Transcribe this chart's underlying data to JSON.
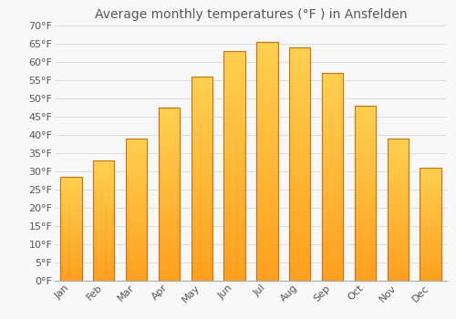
{
  "title": "Average monthly temperatures (°F ) in Ansfelden",
  "months": [
    "Jan",
    "Feb",
    "Mar",
    "Apr",
    "May",
    "Jun",
    "Jul",
    "Aug",
    "Sep",
    "Oct",
    "Nov",
    "Dec"
  ],
  "values": [
    28.5,
    33.0,
    39.0,
    47.5,
    56.0,
    63.0,
    65.5,
    64.0,
    57.0,
    48.0,
    39.0,
    31.0
  ],
  "bar_color_bottom": "#FFA020",
  "bar_color_top": "#FFD050",
  "bar_color_edge": "#C87010",
  "background_color": "#F8F8F8",
  "grid_color": "#DDDDDD",
  "text_color": "#555555",
  "ylim": [
    0,
    70
  ],
  "yticks": [
    0,
    5,
    10,
    15,
    20,
    25,
    30,
    35,
    40,
    45,
    50,
    55,
    60,
    65,
    70
  ],
  "title_fontsize": 10,
  "tick_fontsize": 8,
  "font_family": "DejaVu Sans"
}
